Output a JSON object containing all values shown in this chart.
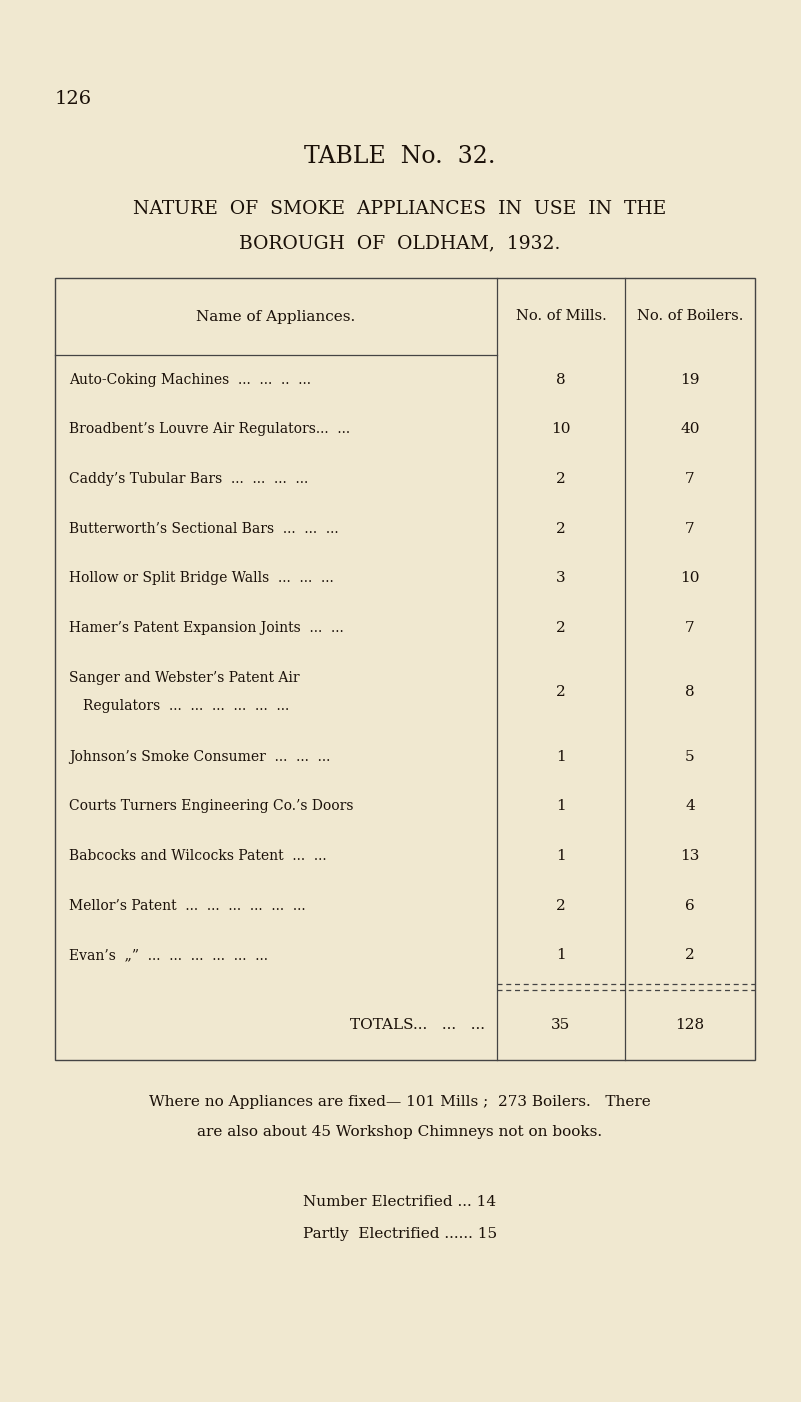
{
  "page_number": "126",
  "title_line1": "TABLE  No.  32.",
  "title_line2": "NATURE  OF  SMOKE  APPLIANCES  IN  USE  IN  THE",
  "title_line3": "BOROUGH  OF  OLDHAM,  1932.",
  "col_headers": [
    "Name of Appliances.",
    "No. of Mills.",
    "No. of Boilers."
  ],
  "rows": [
    [
      "Auto-Coking Machines  ...  ...  ..  ...",
      "8",
      "19"
    ],
    [
      "Broadbent’s Louvre Air Regulators...  ...",
      "10",
      "40"
    ],
    [
      "Caddy’s Tubular Bars  ...  ...  ...  ...",
      "2",
      "7"
    ],
    [
      "Butterworth’s Sectional Bars  ...  ...  ...",
      "2",
      "7"
    ],
    [
      "Hollow or Split Bridge Walls  ...  ...  ...",
      "3",
      "10"
    ],
    [
      "Hamer’s Patent Expansion Joints  ...  ...",
      "2",
      "7"
    ],
    [
      "Sanger and Webster’s Patent Air",
      "Regulators  ...  ...  ...  ...  ...  ...",
      "2",
      "8"
    ],
    [
      "Johnson’s Smoke Consumer  ...  ...  ...",
      "1",
      "5"
    ],
    [
      "Courts Turners Engineering Co.’s Doors",
      "1",
      "4"
    ],
    [
      "Babcocks and Wilcocks Patent  ...  ...",
      "1",
      "13"
    ],
    [
      "Mellor’s Patent  ...  ...  ...  ...  ...  ...",
      "2",
      "6"
    ],
    [
      "Evan’s  „”  ...  ...  ...  ...  ...  ...",
      "1",
      "2"
    ]
  ],
  "totals_label": "TOTALS...   ...   ...",
  "totals_mills": "35",
  "totals_boilers": "128",
  "footer_line1": "Where no Appliances are fixed— 101 Mills ;  273 Boilers.   There",
  "footer_line2": "are also about 45 Workshop Chimneys not on books.",
  "footer_line3": "Number Electrified ... 14",
  "footer_line4": "Partly  Electrified ...... 15",
  "bg_color": "#f0e8d0",
  "text_color": "#1a1008",
  "line_color": "#444444"
}
